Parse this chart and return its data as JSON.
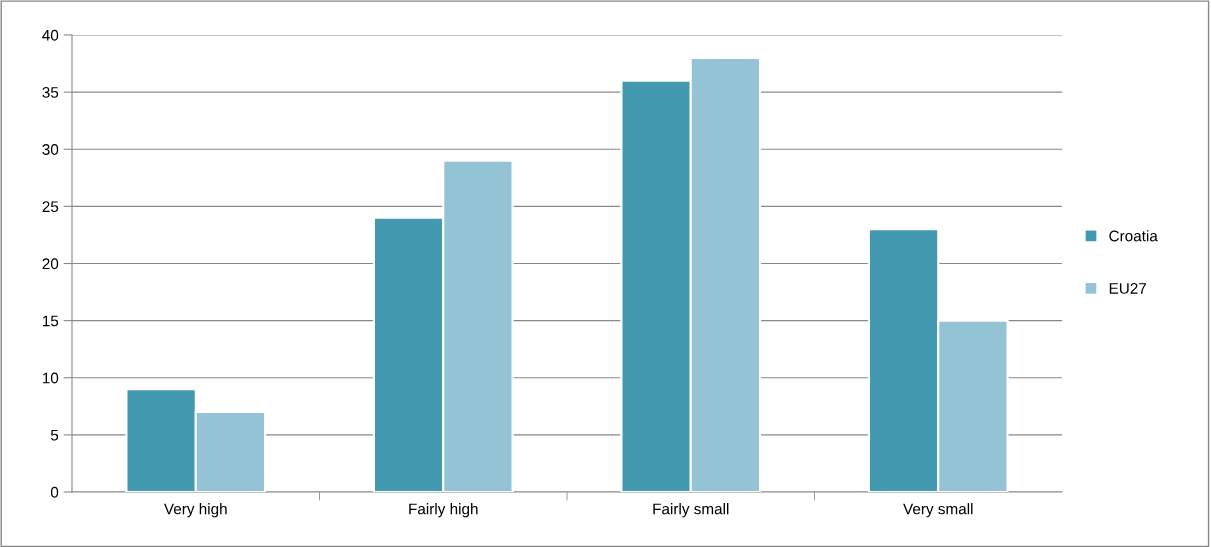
{
  "chart_data": {
    "type": "bar",
    "categories": [
      "Very high",
      "Fairly high",
      "Fairly small",
      "Very small"
    ],
    "series": [
      {
        "name": "Croatia",
        "color": "#4299b0",
        "values": [
          9,
          24,
          36,
          23
        ]
      },
      {
        "name": "EU27",
        "color": "#93c3d5",
        "values": [
          7,
          29,
          38,
          15
        ]
      }
    ],
    "ylim": [
      0,
      40
    ],
    "yticks": [
      0,
      5,
      10,
      15,
      20,
      25,
      30,
      35,
      40
    ],
    "grid": "y",
    "legend": "right"
  }
}
